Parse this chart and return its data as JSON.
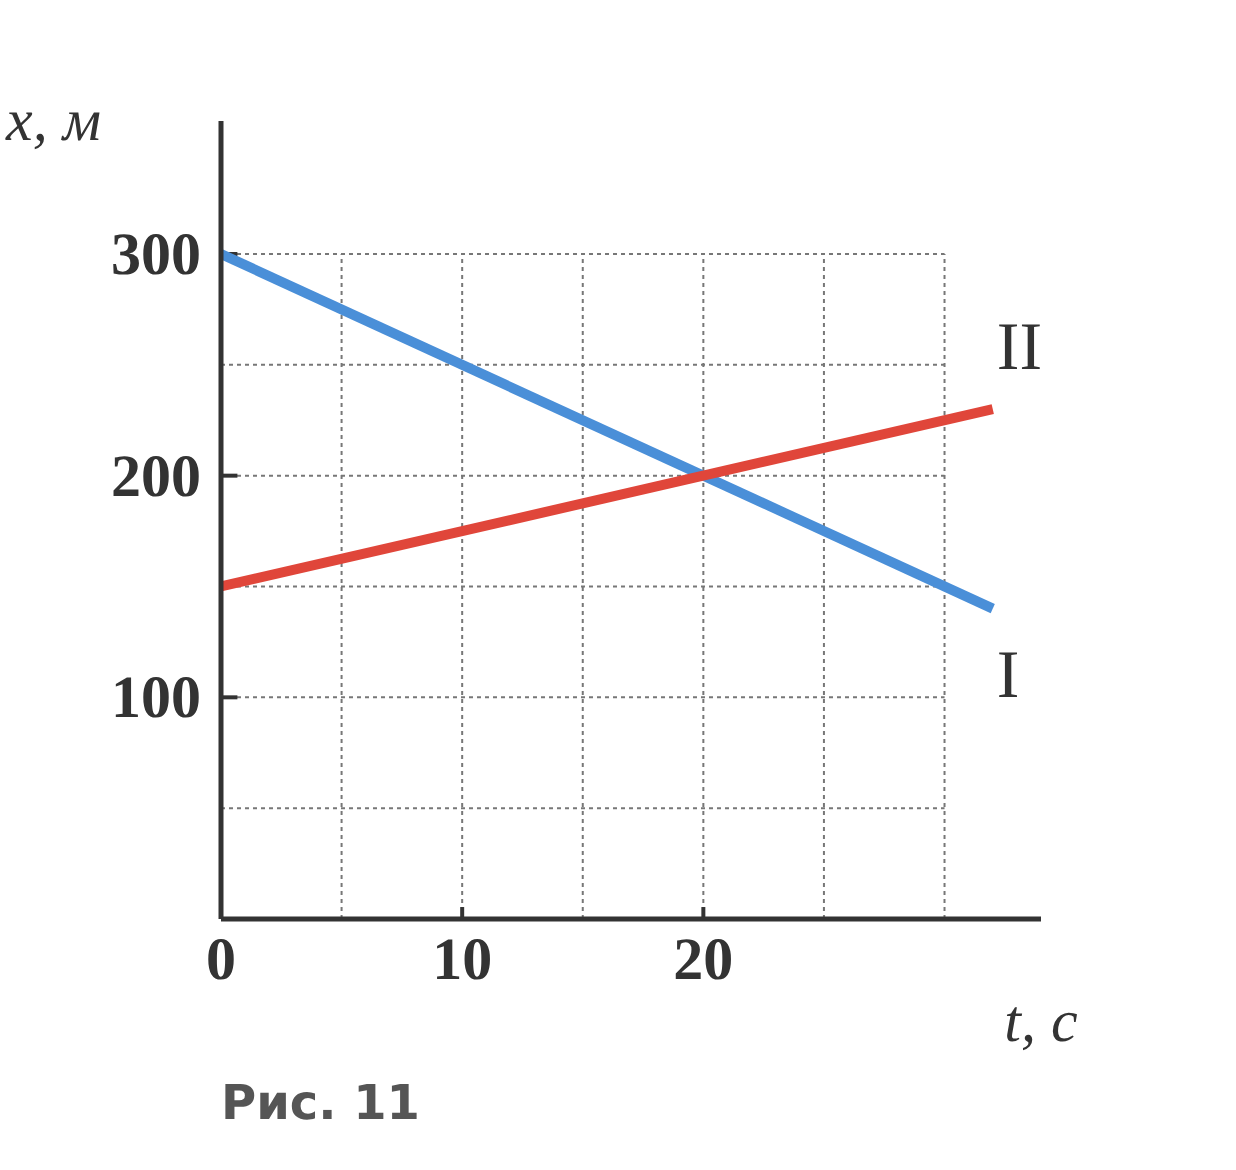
{
  "chart_data": {
    "type": "line",
    "xlabel": "t, с",
    "ylabel": "x, м",
    "x": [
      0,
      32
    ],
    "series": [
      {
        "name": "I",
        "color": "#4a8fd8",
        "values": [
          300,
          140
        ]
      },
      {
        "name": "II",
        "color": "#e0463a",
        "values": [
          150,
          230
        ]
      }
    ],
    "xlim": [
      0,
      34
    ],
    "ylim": [
      0,
      360
    ],
    "xticks": [
      0,
      {
        "value": 5,
        "label": null
      },
      10,
      {
        "value": 15,
        "label": null
      },
      20,
      {
        "value": 25,
        "label": null
      },
      {
        "value": 30,
        "label": null
      }
    ],
    "yticks": [
      {
        "value": 50,
        "label": null
      },
      100,
      {
        "value": 150,
        "label": null
      },
      200,
      {
        "value": 250,
        "label": null
      },
      300
    ],
    "grid": true,
    "legend": false,
    "marker": "none",
    "line_style": "solid",
    "annotations": [
      "Рис. 11"
    ]
  }
}
